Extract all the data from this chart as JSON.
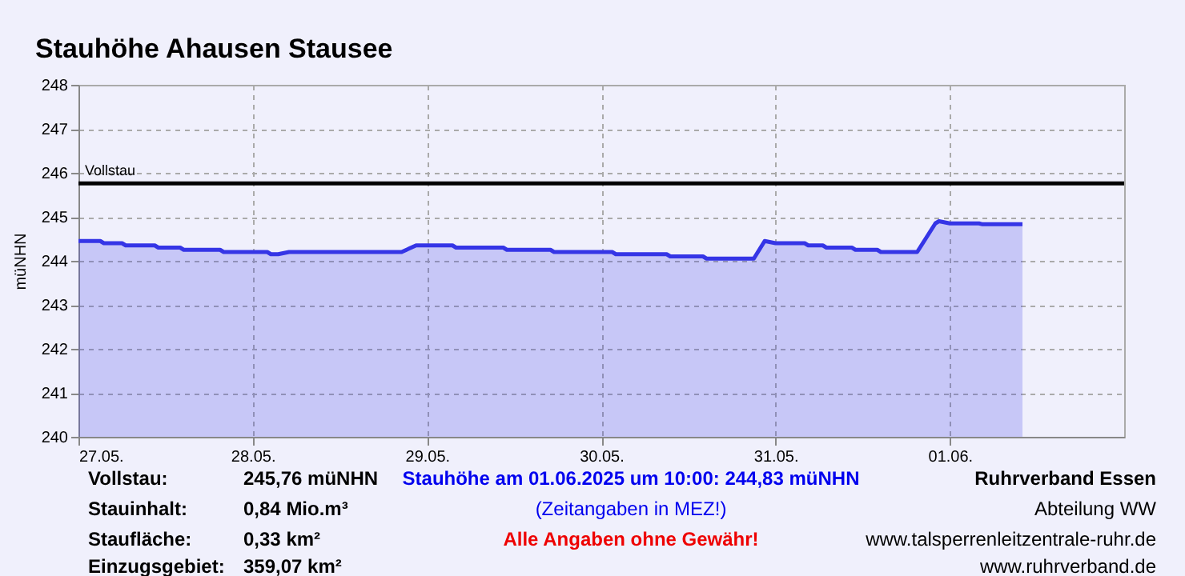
{
  "chart_data": {
    "type": "area",
    "title": "Stauhöhe Ahausen Stausee",
    "ylabel": "müNHN",
    "x": [
      "2025-05-27T00:00",
      "2025-05-27T03:00",
      "2025-05-27T03:30",
      "2025-05-27T06:00",
      "2025-05-27T06:30",
      "2025-05-27T10:30",
      "2025-05-27T11:00",
      "2025-05-27T14:00",
      "2025-05-27T14:30",
      "2025-05-27T19:30",
      "2025-05-27T20:00",
      "2025-05-28T02:00",
      "2025-05-28T02:30",
      "2025-05-28T03:30",
      "2025-05-28T05:00",
      "2025-05-28T20:30",
      "2025-05-28T22:30",
      "2025-05-29T03:30",
      "2025-05-29T04:00",
      "2025-05-29T10:30",
      "2025-05-29T11:00",
      "2025-05-29T17:00",
      "2025-05-29T17:30",
      "2025-05-30T01:30",
      "2025-05-30T02:00",
      "2025-05-30T09:00",
      "2025-05-30T09:30",
      "2025-05-30T14:00",
      "2025-05-30T14:30",
      "2025-05-30T21:00",
      "2025-05-30T22:30",
      "2025-05-31T00:00",
      "2025-05-31T04:00",
      "2025-05-31T04:30",
      "2025-05-31T06:30",
      "2025-05-31T07:00",
      "2025-05-31T10:30",
      "2025-05-31T11:00",
      "2025-05-31T14:00",
      "2025-05-31T14:30",
      "2025-05-31T19:30",
      "2025-05-31T22:00",
      "2025-05-31T22:30",
      "2025-06-01T00:00",
      "2025-06-01T04:00",
      "2025-06-01T04:30",
      "2025-06-01T10:00"
    ],
    "series": [
      {
        "color": "#3535e6",
        "values": [
          244.45,
          244.45,
          244.4,
          244.4,
          244.35,
          244.35,
          244.3,
          244.3,
          244.25,
          244.25,
          244.2,
          244.2,
          244.15,
          244.15,
          244.2,
          244.2,
          244.35,
          244.35,
          244.3,
          244.3,
          244.25,
          244.25,
          244.2,
          244.2,
          244.15,
          244.15,
          244.1,
          244.1,
          244.05,
          244.05,
          244.45,
          244.4,
          244.4,
          244.35,
          244.35,
          244.3,
          244.3,
          244.25,
          244.25,
          244.2,
          244.2,
          244.85,
          244.9,
          244.85,
          244.85,
          244.83,
          244.83
        ]
      }
    ],
    "xlim": [
      "2025-05-27T00:00",
      "2025-06-02T00:00"
    ],
    "xticks": [
      {
        "value": "2025-05-27T00:00",
        "label": "27.05."
      },
      {
        "value": "2025-05-28T00:00",
        "label": "28.05."
      },
      {
        "value": "2025-05-29T00:00",
        "label": "29.05."
      },
      {
        "value": "2025-05-30T00:00",
        "label": "30.05."
      },
      {
        "value": "2025-05-31T00:00",
        "label": "31.05."
      },
      {
        "value": "2025-06-01T00:00",
        "label": "01.06."
      }
    ],
    "ylim": [
      240,
      248
    ],
    "yticks": [
      240,
      241,
      242,
      243,
      244,
      245,
      246,
      247,
      248
    ],
    "ref_lines": [
      {
        "axis": "y",
        "value": 245.76,
        "label": "Vollstau",
        "color": "#000000"
      }
    ],
    "grid": true,
    "annotations": [
      "Vollstau:",
      "245,76 müNHN",
      "Stauhöhe am 01.06.2025 um 10:00: 244,83  müNHN",
      "Ruhrverband Essen",
      "Stauinhalt:",
      "0,84 Mio.m³",
      "(Zeitangaben in MEZ!)",
      "Abteilung WW",
      "Staufläche:",
      "0,33 km²",
      "Alle Angaben ohne Gewähr!",
      "www.talsperrenleitzentrale-ruhr.de",
      "Einzugsgebiet:",
      "359,07 km²",
      "www.ruhrverband.de"
    ]
  }
}
